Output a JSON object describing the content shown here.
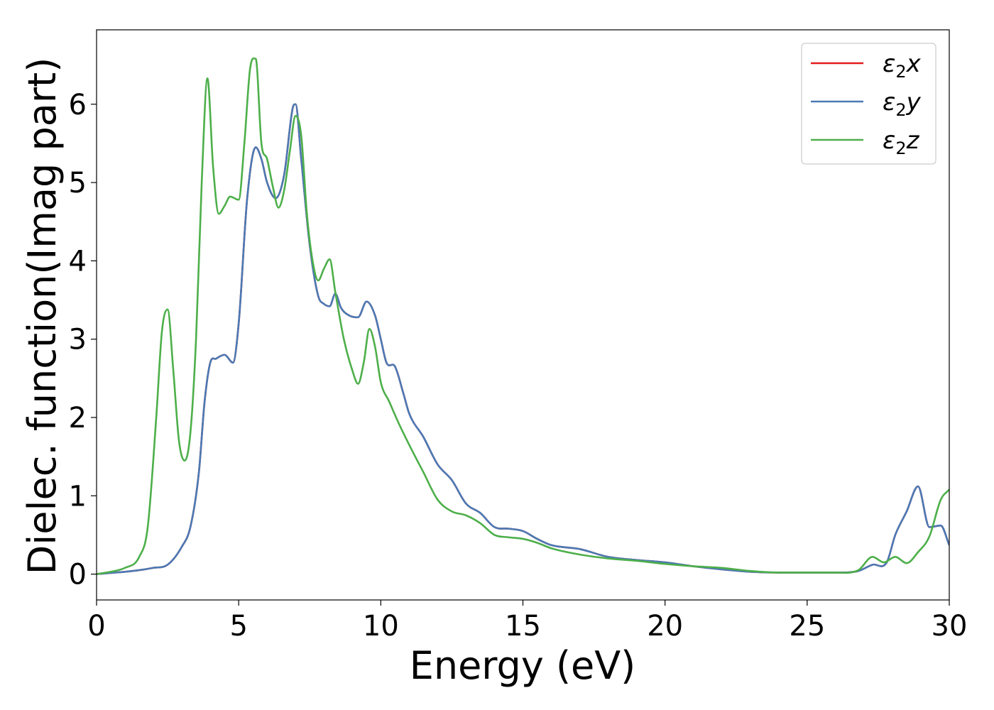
{
  "chart_data": {
    "type": "line",
    "xlabel": "Energy (eV)",
    "ylabel": "Dielec. function(Imag part)",
    "xlim": [
      0,
      30
    ],
    "ylim": [
      -0.33,
      6.95
    ],
    "xticks": [
      0,
      5,
      10,
      15,
      20,
      25,
      30
    ],
    "yticks": [
      0,
      1,
      2,
      3,
      4,
      5,
      6
    ],
    "grid": false,
    "legend_position": "top-right",
    "series": [
      {
        "name": "ε₂x",
        "legend": {
          "base": "ε",
          "sub": "2",
          "suffix": "x"
        },
        "color": "#e41a1c",
        "x": [
          0,
          0.5,
          1.0,
          1.5,
          2.0,
          2.5,
          3.0,
          3.3,
          3.6,
          3.8,
          4.0,
          4.2,
          4.5,
          4.8,
          5.0,
          5.3,
          5.6,
          5.8,
          6.0,
          6.3,
          6.6,
          6.9,
          7.0,
          7.2,
          7.5,
          7.8,
          8.0,
          8.2,
          8.4,
          8.6,
          8.9,
          9.2,
          9.5,
          9.8,
          10.0,
          10.2,
          10.5,
          10.8,
          11.0,
          11.5,
          12.0,
          12.5,
          13.0,
          13.5,
          14.0,
          14.5,
          15.0,
          15.5,
          16.0,
          17.0,
          18.0,
          19.0,
          20.0,
          21.0,
          22.0,
          23.0,
          24.0,
          25.0,
          26.0,
          26.8,
          27.3,
          27.8,
          28.1,
          28.5,
          28.9,
          29.3,
          29.7,
          30.0
        ],
        "y": [
          0,
          0.015,
          0.03,
          0.05,
          0.08,
          0.12,
          0.35,
          0.6,
          1.3,
          2.2,
          2.7,
          2.75,
          2.8,
          2.7,
          3.2,
          4.8,
          5.45,
          5.3,
          5.0,
          4.8,
          5.1,
          5.95,
          6.0,
          5.3,
          4.2,
          3.55,
          3.45,
          3.42,
          3.58,
          3.4,
          3.3,
          3.28,
          3.48,
          3.3,
          3.0,
          2.7,
          2.65,
          2.3,
          2.05,
          1.75,
          1.4,
          1.2,
          0.9,
          0.78,
          0.6,
          0.58,
          0.55,
          0.45,
          0.37,
          0.32,
          0.22,
          0.18,
          0.15,
          0.1,
          0.06,
          0.03,
          0.02,
          0.02,
          0.02,
          0.04,
          0.12,
          0.15,
          0.5,
          0.8,
          1.12,
          0.6,
          0.62,
          0.37
        ]
      },
      {
        "name": "ε₂y",
        "legend": {
          "base": "ε",
          "sub": "2",
          "suffix": "y"
        },
        "color": "#4a7ab5",
        "x": [
          0,
          0.5,
          1.0,
          1.5,
          2.0,
          2.5,
          3.0,
          3.3,
          3.6,
          3.8,
          4.0,
          4.2,
          4.5,
          4.8,
          5.0,
          5.3,
          5.6,
          5.8,
          6.0,
          6.3,
          6.6,
          6.9,
          7.0,
          7.2,
          7.5,
          7.8,
          8.0,
          8.2,
          8.4,
          8.6,
          8.9,
          9.2,
          9.5,
          9.8,
          10.0,
          10.2,
          10.5,
          10.8,
          11.0,
          11.5,
          12.0,
          12.5,
          13.0,
          13.5,
          14.0,
          14.5,
          15.0,
          15.5,
          16.0,
          17.0,
          18.0,
          19.0,
          20.0,
          21.0,
          22.0,
          23.0,
          24.0,
          25.0,
          26.0,
          26.8,
          27.3,
          27.8,
          28.1,
          28.5,
          28.9,
          29.3,
          29.7,
          30.0
        ],
        "y": [
          0,
          0.015,
          0.03,
          0.05,
          0.08,
          0.12,
          0.35,
          0.6,
          1.3,
          2.2,
          2.7,
          2.75,
          2.8,
          2.7,
          3.2,
          4.8,
          5.45,
          5.3,
          5.0,
          4.8,
          5.1,
          5.95,
          6.0,
          5.3,
          4.2,
          3.55,
          3.45,
          3.42,
          3.58,
          3.4,
          3.3,
          3.28,
          3.48,
          3.3,
          3.0,
          2.7,
          2.65,
          2.3,
          2.05,
          1.75,
          1.4,
          1.2,
          0.9,
          0.78,
          0.6,
          0.58,
          0.55,
          0.45,
          0.37,
          0.32,
          0.22,
          0.18,
          0.15,
          0.1,
          0.06,
          0.03,
          0.02,
          0.02,
          0.02,
          0.04,
          0.12,
          0.15,
          0.5,
          0.8,
          1.12,
          0.6,
          0.62,
          0.37
        ]
      },
      {
        "name": "ε₂z",
        "legend": {
          "base": "ε",
          "sub": "2",
          "suffix": "z"
        },
        "color": "#4daf4a",
        "x": [
          0,
          0.5,
          1.0,
          1.5,
          1.8,
          2.1,
          2.3,
          2.5,
          2.7,
          2.9,
          3.1,
          3.3,
          3.5,
          3.7,
          3.9,
          4.1,
          4.3,
          4.5,
          4.7,
          5.0,
          5.2,
          5.4,
          5.6,
          5.8,
          6.0,
          6.2,
          6.4,
          6.6,
          6.8,
          7.0,
          7.2,
          7.4,
          7.6,
          7.8,
          8.0,
          8.2,
          8.4,
          8.7,
          9.0,
          9.2,
          9.4,
          9.6,
          9.8,
          10.0,
          10.3,
          10.6,
          11.0,
          11.5,
          12.0,
          12.5,
          13.0,
          13.5,
          14.0,
          14.5,
          15.0,
          15.5,
          16.0,
          17.0,
          18.0,
          19.0,
          20.0,
          21.0,
          22.0,
          23.0,
          24.0,
          25.0,
          26.0,
          26.8,
          27.3,
          27.7,
          28.1,
          28.5,
          28.9,
          29.3,
          29.7,
          30.0
        ],
        "y": [
          0,
          0.03,
          0.08,
          0.22,
          0.6,
          2.0,
          3.1,
          3.38,
          2.6,
          1.7,
          1.45,
          1.8,
          3.0,
          5.0,
          6.33,
          5.2,
          4.6,
          4.7,
          4.82,
          4.78,
          5.5,
          6.45,
          6.58,
          5.5,
          5.3,
          4.95,
          4.68,
          4.9,
          5.4,
          5.85,
          5.6,
          4.6,
          4.0,
          3.75,
          3.9,
          4.02,
          3.6,
          3.0,
          2.6,
          2.43,
          2.7,
          3.13,
          2.9,
          2.45,
          2.2,
          1.95,
          1.65,
          1.3,
          0.95,
          0.8,
          0.75,
          0.65,
          0.5,
          0.47,
          0.45,
          0.4,
          0.33,
          0.25,
          0.2,
          0.17,
          0.13,
          0.1,
          0.08,
          0.04,
          0.02,
          0.02,
          0.02,
          0.05,
          0.22,
          0.15,
          0.22,
          0.14,
          0.28,
          0.48,
          0.95,
          1.08
        ]
      }
    ]
  }
}
